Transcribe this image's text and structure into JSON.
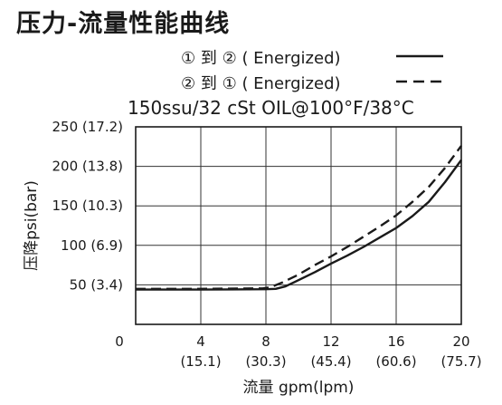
{
  "title": "压力-流量性能曲线",
  "legend": [
    {
      "label": "① 到 ② ( Energized)",
      "style": "solid"
    },
    {
      "label": "② 到 ① ( Energized)",
      "style": "dashed"
    }
  ],
  "subtitle": "150ssu/32 cSt OIL@100°F/38°C",
  "chart_data": {
    "type": "line",
    "title": "压力-流量性能曲线",
    "subtitle": "150ssu/32 cSt OIL@100°F/38°C",
    "xlabel": "流量 gpm(lpm)",
    "ylabel": "压降psi(bar)",
    "xlim": [
      0,
      20
    ],
    "ylim": [
      0,
      250
    ],
    "grid": true,
    "legend_position": "top-right",
    "x_ticks": [
      {
        "value": 0,
        "label": "0",
        "sublabel": ""
      },
      {
        "value": 4,
        "label": "4",
        "sublabel": "(15.1)"
      },
      {
        "value": 8,
        "label": "8",
        "sublabel": "(30.3)"
      },
      {
        "value": 12,
        "label": "12",
        "sublabel": "(45.4)"
      },
      {
        "value": 16,
        "label": "16",
        "sublabel": "(60.6)"
      },
      {
        "value": 20,
        "label": "20",
        "sublabel": "(75.7)"
      }
    ],
    "y_ticks": [
      {
        "value": 50,
        "label": "50 (3.4)"
      },
      {
        "value": 100,
        "label": "100 (6.9)"
      },
      {
        "value": 150,
        "label": "150 (10.3)"
      },
      {
        "value": 200,
        "label": "200 (13.8)"
      },
      {
        "value": 250,
        "label": "250 (17.2)"
      }
    ],
    "series": [
      {
        "name": "① 到 ② ( Energized)",
        "style": "solid",
        "color": "#1a1a1a",
        "x": [
          0,
          4,
          8,
          8.6,
          9.2,
          9.8,
          11,
          12,
          13,
          14,
          15,
          16,
          17,
          18,
          19,
          20
        ],
        "y": [
          44,
          44,
          44.5,
          45,
          48,
          54,
          66,
          77,
          87,
          98,
          110,
          122,
          137,
          155,
          180,
          208
        ]
      },
      {
        "name": "② 到 ① ( Energized)",
        "style": "dashed",
        "color": "#1a1a1a",
        "x": [
          0,
          4,
          7.8,
          8.3,
          9,
          10,
          11,
          12,
          13,
          14,
          15,
          16,
          17,
          18,
          19,
          20
        ],
        "y": [
          45,
          45,
          45.5,
          47,
          53,
          63,
          75,
          86,
          98,
          111,
          124,
          138,
          155,
          174,
          198,
          226
        ]
      }
    ]
  }
}
